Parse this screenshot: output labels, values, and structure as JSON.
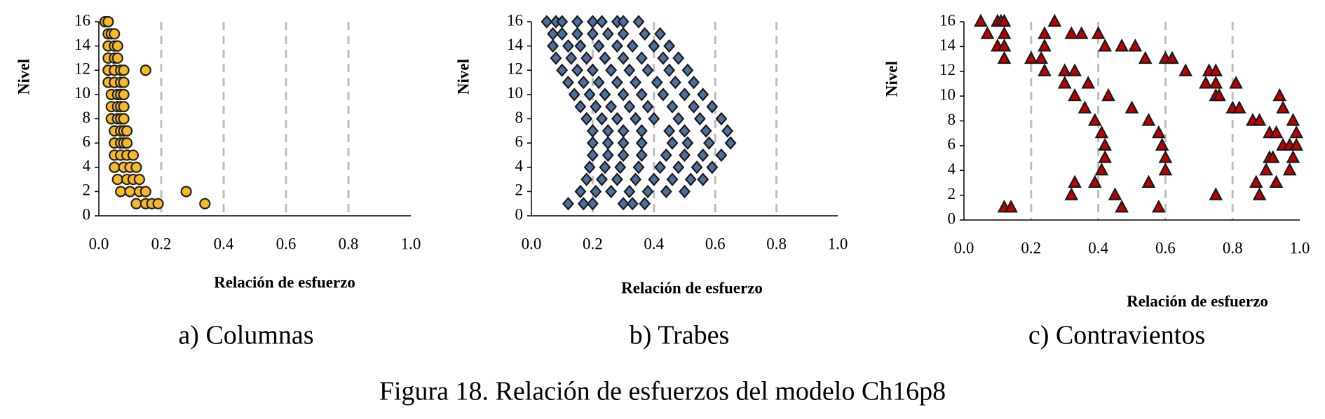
{
  "chart_data": [
    {
      "type": "scatter",
      "subtitle": "a) Columnas",
      "x_label": "Relación de esfuerzo",
      "y_label": "Nivel",
      "marker": "circle",
      "color": "#f7b928",
      "x": [
        0.02,
        0.03,
        0.03,
        0.04,
        0.05,
        0.03,
        0.05,
        0.06,
        0.03,
        0.05,
        0.06,
        0.03,
        0.05,
        0.07,
        0.08,
        0.15,
        0.03,
        0.05,
        0.07,
        0.08,
        0.04,
        0.06,
        0.07,
        0.08,
        0.04,
        0.06,
        0.07,
        0.08,
        0.04,
        0.06,
        0.07,
        0.08,
        0.05,
        0.07,
        0.08,
        0.09,
        0.05,
        0.07,
        0.08,
        0.09,
        0.05,
        0.07,
        0.09,
        0.11,
        0.05,
        0.08,
        0.1,
        0.12,
        0.06,
        0.09,
        0.11,
        0.13,
        0.07,
        0.1,
        0.13,
        0.15,
        0.28,
        0.12,
        0.15,
        0.17,
        0.19,
        0.34
      ],
      "values": [
        16,
        16,
        15,
        15,
        15,
        14,
        14,
        14,
        13,
        13,
        13,
        12,
        12,
        12,
        12,
        12,
        11,
        11,
        11,
        11,
        10,
        10,
        10,
        10,
        9,
        9,
        9,
        9,
        8,
        8,
        8,
        8,
        7,
        7,
        7,
        7,
        6,
        6,
        6,
        6,
        5,
        5,
        5,
        5,
        4,
        4,
        4,
        4,
        3,
        3,
        3,
        3,
        2,
        2,
        2,
        2,
        2,
        1,
        1,
        1,
        1,
        1
      ],
      "xlim": [
        0,
        1
      ],
      "ylim": [
        0,
        16
      ],
      "xticks": [
        {
          "value": 0,
          "label": "0.0"
        },
        0.2,
        0.4,
        0.6,
        0.8,
        {
          "value": 1,
          "label": "1.0"
        }
      ],
      "yticks": [
        0,
        2,
        4,
        6,
        8,
        10,
        12,
        14,
        16
      ],
      "grid": true
    },
    {
      "type": "scatter",
      "subtitle": "b) Trabes",
      "x_label": "Relación de esfuerzo",
      "y_label": "Nivel",
      "marker": "diamond",
      "color": "#4f6f9e",
      "x": [
        0.05,
        0.08,
        0.1,
        0.15,
        0.2,
        0.23,
        0.28,
        0.3,
        0.35,
        0.07,
        0.1,
        0.15,
        0.2,
        0.25,
        0.3,
        0.37,
        0.42,
        0.07,
        0.12,
        0.16,
        0.22,
        0.28,
        0.33,
        0.4,
        0.45,
        0.08,
        0.13,
        0.18,
        0.24,
        0.3,
        0.36,
        0.43,
        0.48,
        0.1,
        0.15,
        0.2,
        0.26,
        0.32,
        0.38,
        0.45,
        0.51,
        0.12,
        0.17,
        0.22,
        0.28,
        0.34,
        0.41,
        0.47,
        0.53,
        0.14,
        0.19,
        0.24,
        0.3,
        0.36,
        0.43,
        0.5,
        0.56,
        0.16,
        0.21,
        0.26,
        0.32,
        0.38,
        0.46,
        0.53,
        0.59,
        0.18,
        0.23,
        0.28,
        0.34,
        0.4,
        0.48,
        0.55,
        0.62,
        0.2,
        0.25,
        0.3,
        0.36,
        0.45,
        0.5,
        0.57,
        0.64,
        0.2,
        0.25,
        0.3,
        0.36,
        0.46,
        0.51,
        0.58,
        0.65,
        0.2,
        0.25,
        0.3,
        0.36,
        0.44,
        0.5,
        0.56,
        0.62,
        0.19,
        0.24,
        0.29,
        0.35,
        0.42,
        0.48,
        0.54,
        0.59,
        0.18,
        0.23,
        0.28,
        0.34,
        0.4,
        0.46,
        0.52,
        0.56,
        0.16,
        0.21,
        0.26,
        0.32,
        0.38,
        0.44,
        0.5,
        0.12,
        0.17,
        0.2,
        0.3,
        0.33,
        0.37
      ],
      "values": [
        16,
        16,
        16,
        16,
        16,
        16,
        16,
        16,
        16,
        15,
        15,
        15,
        15,
        15,
        15,
        15,
        15,
        14,
        14,
        14,
        14,
        14,
        14,
        14,
        14,
        13,
        13,
        13,
        13,
        13,
        13,
        13,
        13,
        12,
        12,
        12,
        12,
        12,
        12,
        12,
        12,
        11,
        11,
        11,
        11,
        11,
        11,
        11,
        11,
        10,
        10,
        10,
        10,
        10,
        10,
        10,
        10,
        9,
        9,
        9,
        9,
        9,
        9,
        9,
        9,
        8,
        8,
        8,
        8,
        8,
        8,
        8,
        8,
        7,
        7,
        7,
        7,
        7,
        7,
        7,
        7,
        6,
        6,
        6,
        6,
        6,
        6,
        6,
        6,
        5,
        5,
        5,
        5,
        5,
        5,
        5,
        5,
        4,
        4,
        4,
        4,
        4,
        4,
        4,
        4,
        3,
        3,
        3,
        3,
        3,
        3,
        3,
        3,
        2,
        2,
        2,
        2,
        2,
        2,
        2,
        1,
        1,
        1,
        1,
        1,
        1
      ],
      "xlim": [
        0,
        1
      ],
      "ylim": [
        0,
        16
      ],
      "xticks": [
        {
          "value": 0,
          "label": "0.0"
        },
        0.2,
        0.4,
        0.6,
        0.8,
        {
          "value": 1,
          "label": "1.0"
        }
      ],
      "yticks": [
        0,
        2,
        4,
        6,
        8,
        10,
        12,
        14,
        16
      ],
      "grid": true
    },
    {
      "type": "scatter",
      "subtitle": "c) Contravientos",
      "x_label": "Relación de esfuerzo",
      "y_label": "Nivel",
      "marker": "triangle",
      "color": "#c00000",
      "x": [
        0.05,
        0.1,
        0.11,
        0.12,
        0.27,
        0.07,
        0.12,
        0.24,
        0.32,
        0.35,
        0.4,
        0.1,
        0.12,
        0.24,
        0.42,
        0.47,
        0.51,
        0.12,
        0.2,
        0.23,
        0.54,
        0.6,
        0.62,
        0.24,
        0.3,
        0.33,
        0.66,
        0.73,
        0.75,
        0.3,
        0.37,
        0.72,
        0.75,
        0.81,
        0.33,
        0.43,
        0.75,
        0.76,
        0.94,
        0.36,
        0.5,
        0.8,
        0.82,
        0.95,
        0.39,
        0.55,
        0.86,
        0.88,
        0.98,
        0.41,
        0.58,
        0.91,
        0.93,
        0.99,
        0.42,
        0.59,
        0.95,
        0.97,
        0.99,
        0.42,
        0.6,
        0.91,
        0.92,
        0.98,
        0.41,
        0.6,
        0.9,
        0.97,
        0.33,
        0.39,
        0.55,
        0.87,
        0.93,
        0.32,
        0.45,
        0.75,
        0.88,
        0.12,
        0.14,
        0.47,
        0.58
      ],
      "values": [
        16,
        16,
        16,
        16,
        16,
        15,
        15,
        15,
        15,
        15,
        15,
        14,
        14,
        14,
        14,
        14,
        14,
        13,
        13,
        13,
        13,
        13,
        13,
        12,
        12,
        12,
        12,
        12,
        12,
        11,
        11,
        11,
        11,
        11,
        10,
        10,
        10,
        10,
        10,
        9,
        9,
        9,
        9,
        9,
        8,
        8,
        8,
        8,
        8,
        7,
        7,
        7,
        7,
        7,
        6,
        6,
        6,
        6,
        6,
        5,
        5,
        5,
        5,
        5,
        4,
        4,
        4,
        4,
        3,
        3,
        3,
        3,
        3,
        2,
        2,
        2,
        2,
        1,
        1,
        1,
        1
      ],
      "xlim": [
        0,
        1
      ],
      "ylim": [
        0,
        16
      ],
      "xticks": [
        {
          "value": 0,
          "label": "0.0"
        },
        0.2,
        0.4,
        0.6,
        0.8,
        {
          "value": 1,
          "label": "1.0"
        }
      ],
      "yticks": [
        0,
        2,
        4,
        6,
        8,
        10,
        12,
        14,
        16
      ],
      "grid": true
    }
  ],
  "caption": "Figura 18. Relación de esfuerzos del modelo Ch16p8"
}
